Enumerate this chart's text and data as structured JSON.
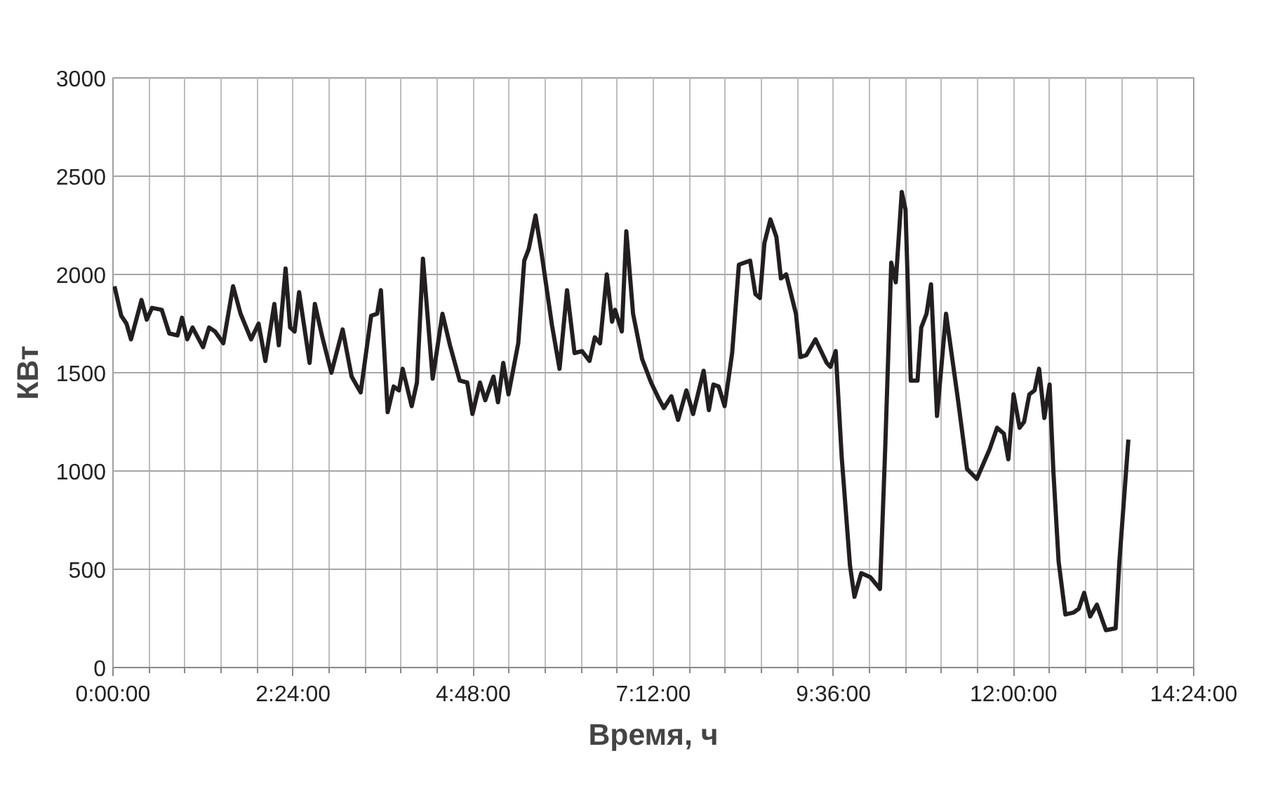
{
  "chart_data": {
    "type": "line",
    "xlabel": "Время, ч",
    "ylabel": "КВт",
    "xlim": [
      0,
      14.4
    ],
    "ylim": [
      0,
      3000
    ],
    "xticks": [
      {
        "value": 0,
        "label": "0:00:00"
      },
      {
        "value": 0.48,
        "label": null
      },
      {
        "value": 0.96,
        "label": null
      },
      {
        "value": 1.44,
        "label": null
      },
      {
        "value": 1.92,
        "label": null
      },
      {
        "value": 2.4,
        "label": "2:24:00"
      },
      {
        "value": 2.88,
        "label": null
      },
      {
        "value": 3.36,
        "label": null
      },
      {
        "value": 3.84,
        "label": null
      },
      {
        "value": 4.32,
        "label": null
      },
      {
        "value": 4.8,
        "label": "4:48:00"
      },
      {
        "value": 5.28,
        "label": null
      },
      {
        "value": 5.76,
        "label": null
      },
      {
        "value": 6.24,
        "label": null
      },
      {
        "value": 6.72,
        "label": null
      },
      {
        "value": 7.2,
        "label": "7:12:00"
      },
      {
        "value": 7.68,
        "label": null
      },
      {
        "value": 8.16,
        "label": null
      },
      {
        "value": 8.64,
        "label": null
      },
      {
        "value": 9.12,
        "label": null
      },
      {
        "value": 9.6,
        "label": "9:36:00"
      },
      {
        "value": 10.08,
        "label": null
      },
      {
        "value": 10.56,
        "label": null
      },
      {
        "value": 11.04,
        "label": null
      },
      {
        "value": 11.52,
        "label": null
      },
      {
        "value": 12,
        "label": "12:00:00"
      },
      {
        "value": 12.48,
        "label": null
      },
      {
        "value": 12.96,
        "label": null
      },
      {
        "value": 13.44,
        "label": null
      },
      {
        "value": 13.92,
        "label": null
      },
      {
        "value": 14.4,
        "label": "14:24:00"
      }
    ],
    "yticks": [
      0,
      500,
      1000,
      1500,
      2000,
      2500,
      3000
    ],
    "grid": true,
    "marker": "none",
    "line_style": "solid",
    "series": [
      {
        "color": "#231f20",
        "x": [
          0.02,
          0.11,
          0.18,
          0.24,
          0.38,
          0.45,
          0.52,
          0.65,
          0.75,
          0.86,
          0.92,
          0.99,
          1.06,
          1.2,
          1.28,
          1.36,
          1.47,
          1.6,
          1.7,
          1.84,
          1.94,
          2.03,
          2.15,
          2.21,
          2.3,
          2.36,
          2.42,
          2.48,
          2.62,
          2.69,
          2.79,
          2.91,
          3.06,
          3.18,
          3.3,
          3.44,
          3.52,
          3.57,
          3.66,
          3.74,
          3.81,
          3.86,
          3.98,
          4.05,
          4.13,
          4.26,
          4.39,
          4.49,
          4.62,
          4.72,
          4.79,
          4.89,
          4.96,
          5.07,
          5.13,
          5.2,
          5.27,
          5.4,
          5.48,
          5.54,
          5.63,
          5.71,
          5.85,
          5.95,
          6.05,
          6.15,
          6.25,
          6.35,
          6.42,
          6.49,
          6.58,
          6.65,
          6.69,
          6.78,
          6.84,
          6.93,
          7.05,
          7.17,
          7.27,
          7.34,
          7.44,
          7.53,
          7.64,
          7.73,
          7.87,
          7.94,
          8.0,
          8.07,
          8.15,
          8.25,
          8.34,
          8.49,
          8.56,
          8.62,
          8.68,
          8.76,
          8.84,
          8.9,
          8.97,
          9.1,
          9.16,
          9.24,
          9.36,
          9.51,
          9.56,
          9.63,
          9.71,
          9.82,
          9.88,
          9.97,
          10.09,
          10.22,
          10.29,
          10.37,
          10.43,
          10.51,
          10.56,
          10.63,
          10.72,
          10.77,
          10.84,
          10.9,
          10.98,
          11.1,
          11.26,
          11.38,
          11.51,
          11.68,
          11.78,
          11.87,
          11.93,
          12.0,
          12.08,
          12.14,
          12.21,
          12.28,
          12.34,
          12.41,
          12.48,
          12.53,
          12.6,
          12.69,
          12.8,
          12.87,
          12.94,
          13.02,
          13.11,
          13.23,
          13.36,
          13.41,
          13.53
        ],
        "values": [
          1940,
          1790,
          1750,
          1670,
          1870,
          1770,
          1830,
          1820,
          1700,
          1690,
          1780,
          1670,
          1730,
          1630,
          1730,
          1710,
          1650,
          1940,
          1800,
          1670,
          1750,
          1560,
          1850,
          1640,
          2030,
          1730,
          1710,
          1910,
          1550,
          1850,
          1680,
          1500,
          1720,
          1480,
          1400,
          1790,
          1800,
          1920,
          1300,
          1430,
          1410,
          1520,
          1330,
          1450,
          2080,
          1470,
          1800,
          1640,
          1460,
          1450,
          1290,
          1450,
          1360,
          1480,
          1350,
          1550,
          1390,
          1650,
          2070,
          2130,
          2300,
          2110,
          1740,
          1520,
          1920,
          1600,
          1610,
          1560,
          1680,
          1650,
          2000,
          1760,
          1820,
          1710,
          2220,
          1800,
          1570,
          1450,
          1370,
          1320,
          1380,
          1260,
          1410,
          1290,
          1510,
          1310,
          1440,
          1430,
          1330,
          1600,
          2050,
          2070,
          1900,
          1880,
          2160,
          2280,
          2190,
          1980,
          2000,
          1800,
          1580,
          1590,
          1670,
          1550,
          1530,
          1610,
          1070,
          520,
          360,
          480,
          460,
          400,
          1120,
          2060,
          1960,
          2420,
          2330,
          1460,
          1460,
          1730,
          1800,
          1950,
          1280,
          1800,
          1360,
          1010,
          960,
          1110,
          1220,
          1190,
          1060,
          1390,
          1220,
          1250,
          1390,
          1410,
          1520,
          1270,
          1440,
          1000,
          540,
          270,
          280,
          300,
          380,
          260,
          320,
          190,
          200,
          540,
          1160
        ]
      }
    ]
  }
}
